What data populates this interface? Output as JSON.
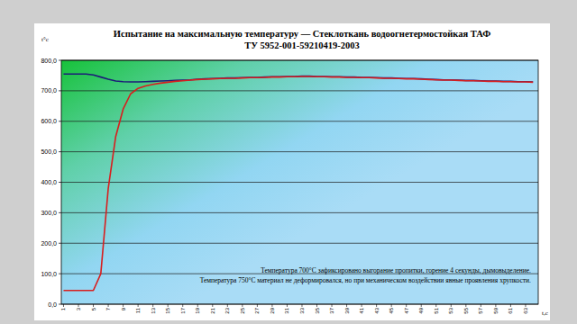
{
  "chart_data": {
    "type": "line",
    "title": "Испытание на максимальную температуру — Стеклоткань водоогнетермостойкая ТАФ",
    "subtitle": "ТУ 5952-001-59210419-2003",
    "ylabel": "t°c",
    "xlabel": "t,c",
    "annotations": [
      "Температура 700°С зафиксировано выгорание пропитки, горение 4 секунды, дымовыделение.",
      "Температура 750°С материал не деформировался, но при механическом воздействии явные проявления хрупкости."
    ],
    "categories": [
      "1",
      null,
      "3",
      null,
      "5",
      null,
      "7",
      null,
      "9",
      null,
      "11",
      null,
      "13",
      null,
      "15",
      null,
      "17",
      null,
      "19",
      null,
      "21",
      null,
      "23",
      null,
      "25",
      null,
      "27",
      null,
      "29",
      null,
      "31",
      null,
      "33",
      null,
      "35",
      null,
      "37",
      null,
      "39",
      null,
      "41",
      null,
      "43",
      null,
      "45",
      null,
      "47",
      null,
      "49",
      null,
      "51",
      null,
      "53",
      null,
      "55",
      null,
      "57",
      null,
      "59",
      null,
      "61",
      null,
      "63",
      null
    ],
    "series": [
      {
        "color": "#1c1c78",
        "values": [
          755,
          755,
          755,
          755,
          752,
          745,
          738,
          732,
          730,
          729,
          729,
          730,
          731,
          732,
          733,
          734,
          735,
          736,
          738,
          739,
          740,
          741,
          742,
          742,
          743,
          744,
          744,
          745,
          746,
          746,
          747,
          747,
          748,
          748,
          747,
          747,
          746,
          746,
          745,
          745,
          744,
          744,
          743,
          742,
          742,
          741,
          740,
          740,
          739,
          738,
          737,
          736,
          736,
          735,
          734,
          734,
          733,
          732,
          732,
          731,
          731,
          730,
          730,
          729
        ]
      },
      {
        "color": "#d81e1e",
        "values": [
          45,
          45,
          45,
          45,
          45,
          100,
          380,
          550,
          640,
          690,
          708,
          716,
          721,
          725,
          728,
          731,
          733,
          735,
          737,
          738,
          739,
          740,
          741,
          741,
          742,
          743,
          743,
          744,
          745,
          745,
          746,
          746,
          747,
          747,
          746,
          746,
          745,
          745,
          744,
          744,
          743,
          743,
          742,
          741,
          741,
          740,
          739,
          739,
          738,
          737,
          736,
          735,
          735,
          734,
          733,
          733,
          732,
          731,
          731,
          730,
          730,
          729,
          729,
          728
        ]
      }
    ],
    "ylim": [
      0,
      800
    ],
    "yticks": [
      {
        "value": 0,
        "label": "0,0"
      },
      {
        "value": 100,
        "label": "100,0"
      },
      {
        "value": 200,
        "label": "200,0"
      },
      {
        "value": 300,
        "label": "300,0"
      },
      {
        "value": 400,
        "label": "400,0"
      },
      {
        "value": 500,
        "label": "500,0"
      },
      {
        "value": 600,
        "label": "600,0"
      },
      {
        "value": 700,
        "label": "700,0"
      },
      {
        "value": 800,
        "label": "800,0"
      }
    ],
    "grid": true
  }
}
